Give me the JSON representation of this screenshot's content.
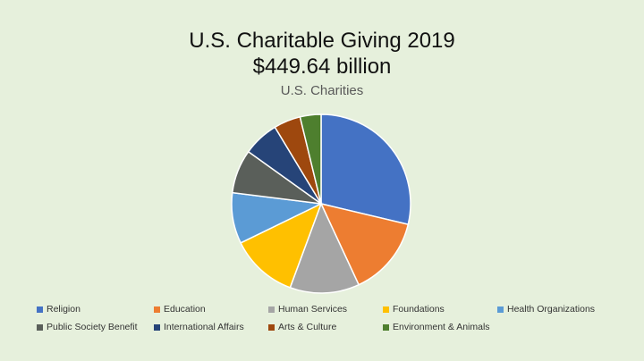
{
  "slide": {
    "title_line1": "U.S. Charitable Giving 2019",
    "title_line2": "$449.64 billion"
  },
  "chart_data": {
    "type": "pie",
    "title": "U.S. Charities",
    "categories": [
      "Religion",
      "Education",
      "Human Services",
      "Foundations",
      "Health Organizations",
      "Public Society Benefit",
      "International Affairs",
      "Arts & Culture",
      "Environment & Animals"
    ],
    "values": [
      128.17,
      64.11,
      55.99,
      54.19,
      41.08,
      35.32,
      28.89,
      21.62,
      16.9
    ],
    "colors": [
      "#4472c4",
      "#ed7d31",
      "#a5a5a5",
      "#ffc000",
      "#5b9bd5",
      "#5a5f5a",
      "#264478",
      "#9e480e",
      "#4e7f2e"
    ],
    "legend_position": "bottom"
  }
}
